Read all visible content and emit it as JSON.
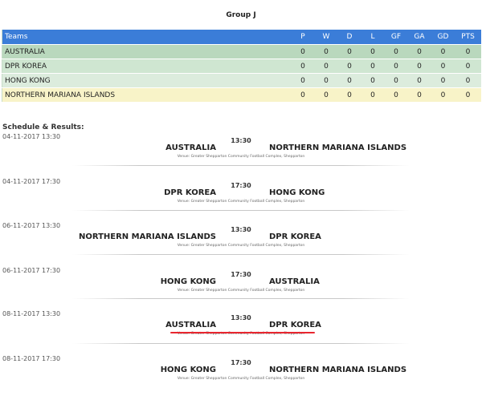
{
  "group_title": "Group J",
  "standings": {
    "columns": [
      "Teams",
      "P",
      "W",
      "D",
      "L",
      "GF",
      "GA",
      "GD",
      "PTS"
    ],
    "rows": [
      {
        "team": "AUSTRALIA",
        "stats": [
          "0",
          "0",
          "0",
          "0",
          "0",
          "0",
          "0",
          "0"
        ]
      },
      {
        "team": "DPR KOREA",
        "stats": [
          "0",
          "0",
          "0",
          "0",
          "0",
          "0",
          "0",
          "0"
        ]
      },
      {
        "team": "HONG KONG",
        "stats": [
          "0",
          "0",
          "0",
          "0",
          "0",
          "0",
          "0",
          "0"
        ]
      },
      {
        "team": "NORTHERN MARIANA ISLANDS",
        "stats": [
          "0",
          "0",
          "0",
          "0",
          "0",
          "0",
          "0",
          "0"
        ]
      }
    ]
  },
  "schedule_title": "Schedule & Results:",
  "matches": [
    {
      "date": "04-11-2017 13:30",
      "home": "AUSTRALIA",
      "time": "13:30",
      "away": "NORTHERN MARIANA ISLANDS",
      "venue": "Venue: Greater Shepparton Community Football Complex, Shepparton"
    },
    {
      "date": "04-11-2017 17:30",
      "home": "DPR KOREA",
      "time": "17:30",
      "away": "HONG KONG",
      "venue": "Venue: Greater Shepparton Community Football Complex, Shepparton"
    },
    {
      "date": "06-11-2017 13:30",
      "home": "NORTHERN MARIANA ISLANDS",
      "time": "13:30",
      "away": "DPR KOREA",
      "venue": "Venue: Greater Shepparton Community Football Complex, Shepparton"
    },
    {
      "date": "06-11-2017 17:30",
      "home": "HONG KONG",
      "time": "17:30",
      "away": "AUSTRALIA",
      "venue": "Venue: Greater Shepparton Community Football Complex, Shepparton"
    },
    {
      "date": "08-11-2017 13:30",
      "home": "AUSTRALIA",
      "time": "13:30",
      "away": "DPR KOREA",
      "venue": "Venue: Greater Shepparton Community Football Complex, Shepparton"
    },
    {
      "date": "08-11-2017 17:30",
      "home": "HONG KONG",
      "time": "17:30",
      "away": "NORTHERN MARIANA ISLANDS",
      "venue": "Venue: Greater Shepparton Community Football Complex, Shepparton"
    }
  ],
  "colors": {
    "header_blue": "#3b7dd8",
    "row_green_1": "#b9d8bd",
    "row_green_2": "#cfe6d1",
    "row_green_3": "#dcecdd",
    "row_yellow": "#f8f3c8",
    "highlight_red": "#e8262f"
  }
}
